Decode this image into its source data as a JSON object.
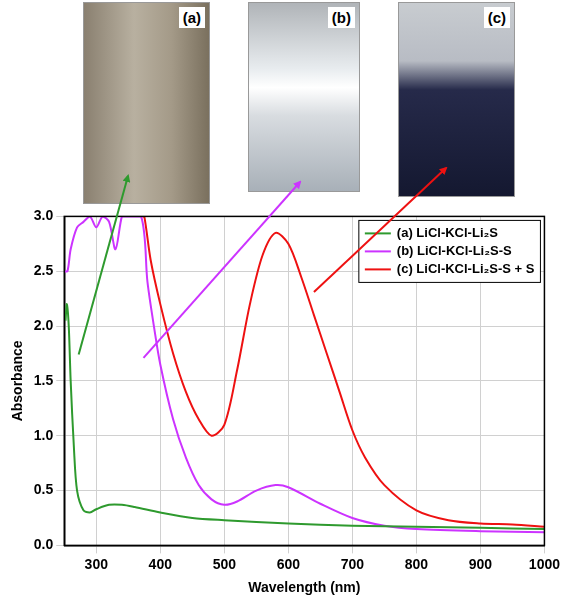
{
  "chart_data": {
    "type": "line",
    "xlabel": "Wavelength (nm)",
    "ylabel": "Absorbance",
    "xlim": [
      250,
      1000
    ],
    "xticks": [
      300,
      400,
      500,
      600,
      700,
      800,
      900,
      1000
    ],
    "ylim": [
      0,
      3
    ],
    "yticks": [
      {
        "value": 0,
        "label": "0.0"
      },
      0.5,
      {
        "value": 1,
        "label": "1.0"
      },
      1.5,
      {
        "value": 2,
        "label": "2.0"
      },
      2.5,
      {
        "value": 3,
        "label": "3.0"
      }
    ],
    "grid": true,
    "legend": "upper right",
    "annotations": [
      "(a)",
      "(b)",
      "(c)"
    ],
    "series": [
      {
        "name": "(a) LiCl-KCl-Li₂S",
        "color": "#2e9a2e",
        "line_style": "solid",
        "x": [
          252,
          254,
          257,
          260,
          265,
          270,
          280,
          290,
          300,
          320,
          340,
          360,
          400,
          450,
          500,
          600,
          700,
          800,
          900,
          1000
        ],
        "values": [
          2.05,
          2.2,
          2.0,
          1.5,
          0.9,
          0.5,
          0.32,
          0.3,
          0.33,
          0.37,
          0.37,
          0.35,
          0.3,
          0.25,
          0.23,
          0.2,
          0.18,
          0.17,
          0.16,
          0.15
        ]
      },
      {
        "name": "(b) LiCl-KCl-Li₂S-S",
        "color": "#cc33ff",
        "line_style": "solid",
        "x": [
          250,
          255,
          260,
          270,
          280,
          290,
          300,
          310,
          320,
          330,
          340,
          345,
          370,
          380,
          390,
          400,
          420,
          440,
          460,
          480,
          500,
          520,
          550,
          580,
          600,
          650,
          700,
          750,
          800,
          900,
          1000
        ],
        "values": [
          2.5,
          2.5,
          2.7,
          2.9,
          2.95,
          3.0,
          2.9,
          3.0,
          2.95,
          2.7,
          3.0,
          3.0,
          3.0,
          2.4,
          2.0,
          1.65,
          1.15,
          0.8,
          0.55,
          0.42,
          0.37,
          0.4,
          0.5,
          0.55,
          0.53,
          0.38,
          0.25,
          0.18,
          0.15,
          0.13,
          0.12
        ]
      },
      {
        "name": "(c) LiCl-KCl-Li₂S-S + S",
        "color": "#ee1111",
        "line_style": "solid",
        "x": [
          372,
          375,
          385,
          400,
          420,
          440,
          460,
          480,
          500,
          520,
          540,
          560,
          580,
          600,
          620,
          640,
          660,
          680,
          700,
          720,
          750,
          800,
          850,
          900,
          950,
          1000
        ],
        "values": [
          3.0,
          3.0,
          2.6,
          2.2,
          1.75,
          1.4,
          1.15,
          1.0,
          1.1,
          1.6,
          2.2,
          2.65,
          2.85,
          2.75,
          2.45,
          2.1,
          1.75,
          1.4,
          1.05,
          0.8,
          0.55,
          0.32,
          0.23,
          0.2,
          0.19,
          0.17
        ]
      }
    ]
  }
}
